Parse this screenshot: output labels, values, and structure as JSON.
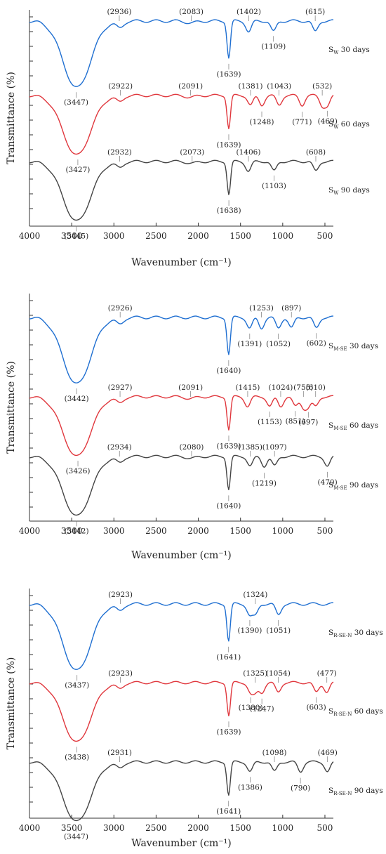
{
  "colors": {
    "30 days": "#1f6fd1",
    "60 days": "#e0373d",
    "90 days": "#444444"
  },
  "chart_data": [
    {
      "type": "line",
      "xlabel": "Wavenumber (cm⁻¹)",
      "ylabel": "Transmittance (%)",
      "xlim": [
        4000,
        400
      ],
      "x_ticks": [
        4000,
        3500,
        3000,
        2500,
        2000,
        1500,
        1000,
        500
      ],
      "series": [
        {
          "sample": "S",
          "sub": "W",
          "days": "30 days",
          "peaks": [
            {
              "x": 3447,
              "label": "(3447)"
            },
            {
              "x": 2936,
              "label": "(2936)"
            },
            {
              "x": 2083,
              "label": "(2083)"
            },
            {
              "x": 1639,
              "label": "(1639)"
            },
            {
              "x": 1402,
              "label": "(1402)"
            },
            {
              "x": 1109,
              "label": "(1109)"
            },
            {
              "x": 615,
              "label": "(615)"
            }
          ]
        },
        {
          "sample": "S",
          "sub": "W",
          "days": "60 days",
          "peaks": [
            {
              "x": 3427,
              "label": "(3427)"
            },
            {
              "x": 2922,
              "label": "(2922)"
            },
            {
              "x": 2091,
              "label": "(2091)"
            },
            {
              "x": 1639,
              "label": "(1639)"
            },
            {
              "x": 1381,
              "label": "(1381)"
            },
            {
              "x": 1248,
              "label": "(1248)"
            },
            {
              "x": 1043,
              "label": "(1043)"
            },
            {
              "x": 771,
              "label": "(771)"
            },
            {
              "x": 532,
              "label": "(532)"
            },
            {
              "x": 469,
              "label": "(469)"
            }
          ]
        },
        {
          "sample": "S",
          "sub": "W",
          "days": "90 days",
          "peaks": [
            {
              "x": 3445,
              "label": "(3445)"
            },
            {
              "x": 2932,
              "label": "(2932)"
            },
            {
              "x": 2073,
              "label": "(2073)"
            },
            {
              "x": 1638,
              "label": "(1638)"
            },
            {
              "x": 1406,
              "label": "(1406)"
            },
            {
              "x": 1103,
              "label": "(1103)"
            },
            {
              "x": 608,
              "label": "(608)"
            }
          ]
        }
      ]
    },
    {
      "type": "line",
      "xlabel": "Wavenumber (cm⁻¹)",
      "ylabel": "Transmittance (%)",
      "xlim": [
        4000,
        400
      ],
      "x_ticks": [
        4000,
        3500,
        3000,
        2500,
        2000,
        1500,
        1000,
        500
      ],
      "series": [
        {
          "sample": "S",
          "sub": "M-SE",
          "days": "30 days",
          "peaks": [
            {
              "x": 3442,
              "label": "(3442)"
            },
            {
              "x": 2926,
              "label": "(2926)"
            },
            {
              "x": 1640,
              "label": "(1640)"
            },
            {
              "x": 1391,
              "label": "(1391)"
            },
            {
              "x": 1253,
              "label": "(1253)"
            },
            {
              "x": 1052,
              "label": "(1052)"
            },
            {
              "x": 897,
              "label": "(897)"
            },
            {
              "x": 602,
              "label": "(602)"
            }
          ]
        },
        {
          "sample": "S",
          "sub": "M-SE",
          "days": "60 days",
          "peaks": [
            {
              "x": 3426,
              "label": "(3426)"
            },
            {
              "x": 2927,
              "label": "(2927)"
            },
            {
              "x": 2091,
              "label": "(2091)"
            },
            {
              "x": 1639,
              "label": "(1639)"
            },
            {
              "x": 1415,
              "label": "(1415)"
            },
            {
              "x": 1153,
              "label": "(1153)"
            },
            {
              "x": 1024,
              "label": "(1024)"
            },
            {
              "x": 851,
              "label": "(851)"
            },
            {
              "x": 755,
              "label": "(755)"
            },
            {
              "x": 697,
              "label": "(697)"
            },
            {
              "x": 610,
              "label": "(610)"
            }
          ]
        },
        {
          "sample": "S",
          "sub": "M-SE",
          "days": "90 days",
          "peaks": [
            {
              "x": 3442,
              "label": "(3442)"
            },
            {
              "x": 2934,
              "label": "(2934)"
            },
            {
              "x": 2080,
              "label": "(2080)"
            },
            {
              "x": 1640,
              "label": "(1640)"
            },
            {
              "x": 1385,
              "label": "(1385)"
            },
            {
              "x": 1219,
              "label": "(1219)"
            },
            {
              "x": 1097,
              "label": "(1097)"
            },
            {
              "x": 470,
              "label": "(470)"
            }
          ]
        }
      ]
    },
    {
      "type": "line",
      "xlabel": "Wavenumber (cm⁻¹)",
      "ylabel": "Transmittance (%)",
      "xlim": [
        4000,
        400
      ],
      "x_ticks": [
        4000,
        3500,
        3000,
        2500,
        2000,
        1500,
        1000,
        500
      ],
      "series": [
        {
          "sample": "S",
          "sub": "R-SE-N",
          "days": "30 days",
          "peaks": [
            {
              "x": 3437,
              "label": "(3437)"
            },
            {
              "x": 2923,
              "label": "(2923)"
            },
            {
              "x": 1641,
              "label": "(1641)"
            },
            {
              "x": 1390,
              "label": "(1390)"
            },
            {
              "x": 1324,
              "label": "(1324)"
            },
            {
              "x": 1051,
              "label": "(1051)"
            }
          ]
        },
        {
          "sample": "S",
          "sub": "R-SE-N",
          "days": "60 days",
          "peaks": [
            {
              "x": 3438,
              "label": "(3438)"
            },
            {
              "x": 2923,
              "label": "(2923)"
            },
            {
              "x": 1639,
              "label": "(1639)"
            },
            {
              "x": 1380,
              "label": "(1380)"
            },
            {
              "x": 1325,
              "label": "(1325)"
            },
            {
              "x": 1247,
              "label": "(1247)"
            },
            {
              "x": 1054,
              "label": "(1054)"
            },
            {
              "x": 603,
              "label": "(603)"
            },
            {
              "x": 477,
              "label": "(477)"
            }
          ]
        },
        {
          "sample": "S",
          "sub": "R-SE-N",
          "days": "90 days",
          "peaks": [
            {
              "x": 3447,
              "label": "(3447)"
            },
            {
              "x": 2931,
              "label": "(2931)"
            },
            {
              "x": 1641,
              "label": "(1641)"
            },
            {
              "x": 1386,
              "label": "(1386)"
            },
            {
              "x": 1098,
              "label": "(1098)"
            },
            {
              "x": 790,
              "label": "(790)"
            },
            {
              "x": 469,
              "label": "(469)"
            }
          ]
        }
      ]
    }
  ]
}
